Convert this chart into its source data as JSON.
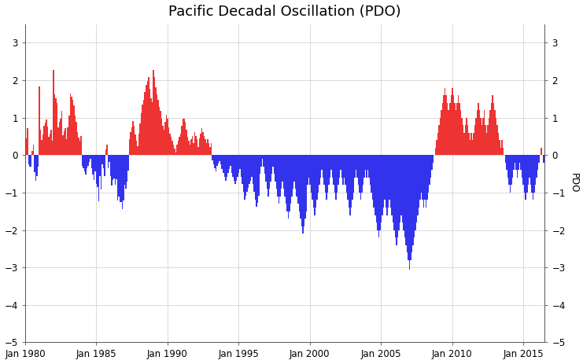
{
  "title": "Pacific Decadal Oscillation (PDO)",
  "ylabel_right": "PDO",
  "ylim": [
    -5.0,
    3.5
  ],
  "yticks": [
    -5.0,
    -4.0,
    -3.0,
    -2.0,
    -1.0,
    0.0,
    1.0,
    2.0,
    3.0
  ],
  "color_positive": "#EE3333",
  "color_negative": "#3333EE",
  "background_color": "#FFFFFF",
  "start_year": 1980,
  "title_fontsize": 13,
  "pdo_values": [
    0.61,
    0.45,
    0.73,
    -0.24,
    -0.31,
    -0.3,
    0.12,
    0.27,
    -0.45,
    -0.69,
    -0.55,
    -0.3,
    1.84,
    0.68,
    0.41,
    0.56,
    0.78,
    0.87,
    0.96,
    0.77,
    0.49,
    0.58,
    0.68,
    0.38,
    2.28,
    1.62,
    1.52,
    1.39,
    0.75,
    0.88,
    0.97,
    1.19,
    0.54,
    0.64,
    0.73,
    0.42,
    0.74,
    1.06,
    1.65,
    1.56,
    1.47,
    1.32,
    1.06,
    0.88,
    0.62,
    0.47,
    0.38,
    0.52,
    -0.28,
    -0.36,
    -0.44,
    -0.52,
    -0.36,
    -0.28,
    -0.18,
    -0.1,
    -0.36,
    -0.52,
    -0.66,
    -0.44,
    -0.76,
    -0.86,
    -1.24,
    -0.56,
    -0.92,
    -0.24,
    -0.36,
    -0.56,
    0.16,
    0.28,
    -0.34,
    -0.18,
    -0.56,
    -0.82,
    -0.67,
    -0.62,
    -0.8,
    -0.65,
    -1.22,
    -1.1,
    -1.26,
    -1.25,
    -1.44,
    -1.22,
    -0.8,
    -0.9,
    -0.7,
    -0.42,
    0.42,
    0.62,
    0.74,
    0.92,
    0.78,
    0.55,
    0.38,
    0.24,
    0.58,
    0.85,
    1.12,
    1.35,
    1.48,
    1.68,
    1.88,
    1.98,
    2.08,
    1.78,
    1.52,
    1.42,
    2.28,
    2.09,
    1.82,
    1.62,
    1.48,
    1.28,
    1.18,
    0.98,
    0.78,
    0.68,
    0.88,
    1.08,
    0.98,
    0.75,
    0.58,
    0.48,
    0.38,
    0.28,
    0.18,
    0.08,
    0.28,
    0.38,
    0.48,
    0.58,
    0.78,
    0.98,
    0.98,
    0.88,
    0.68,
    0.48,
    0.38,
    0.28,
    0.42,
    0.52,
    0.32,
    0.62,
    0.52,
    0.42,
    0.22,
    0.44,
    0.58,
    0.72,
    0.62,
    0.52,
    0.42,
    0.32,
    0.42,
    0.32,
    0.22,
    0.32,
    -0.14,
    -0.24,
    -0.34,
    -0.44,
    -0.28,
    -0.22,
    -0.16,
    -0.24,
    -0.38,
    -0.48,
    -0.58,
    -0.68,
    -0.58,
    -0.48,
    -0.38,
    -0.28,
    -0.48,
    -0.58,
    -0.68,
    -0.78,
    -0.68,
    -0.58,
    -0.48,
    -0.38,
    -0.58,
    -0.78,
    -0.98,
    -1.18,
    -1.08,
    -0.98,
    -0.88,
    -0.78,
    -0.68,
    -0.58,
    -0.78,
    -0.98,
    -1.18,
    -1.38,
    -1.28,
    -1.08,
    -0.5,
    -0.3,
    -0.1,
    -0.3,
    -0.5,
    -0.7,
    -0.9,
    -1.1,
    -0.9,
    -0.7,
    -0.5,
    -0.3,
    -0.5,
    -0.7,
    -0.9,
    -1.1,
    -1.3,
    -1.1,
    -0.9,
    -0.7,
    -0.9,
    -1.1,
    -1.3,
    -1.5,
    -1.7,
    -1.5,
    -1.3,
    -1.1,
    -0.9,
    -0.7,
    -0.9,
    -1.1,
    -1.3,
    -1.5,
    -1.7,
    -1.9,
    -2.1,
    -1.9,
    -1.7,
    -1.5,
    -0.8,
    -0.6,
    -0.8,
    -1.0,
    -1.2,
    -1.4,
    -1.6,
    -1.4,
    -1.2,
    -1.0,
    -0.8,
    -0.6,
    -0.4,
    -0.6,
    -0.8,
    -1.0,
    -1.2,
    -1.0,
    -0.8,
    -0.6,
    -0.4,
    -0.6,
    -0.8,
    -1.0,
    -1.2,
    -1.0,
    -0.8,
    -0.6,
    -0.4,
    -0.6,
    -0.8,
    -0.6,
    -0.8,
    -1.0,
    -1.2,
    -1.4,
    -1.6,
    -1.4,
    -1.2,
    -1.0,
    -0.6,
    -0.4,
    -0.6,
    -0.8,
    -1.0,
    -1.2,
    -1.0,
    -0.8,
    -0.6,
    -0.4,
    -0.6,
    -0.4,
    -0.6,
    -0.8,
    -1.0,
    -1.2,
    -1.4,
    -1.6,
    -1.8,
    -2.0,
    -2.2,
    -2.0,
    -1.8,
    -1.6,
    -1.4,
    -1.2,
    -1.4,
    -1.6,
    -1.4,
    -1.2,
    -1.4,
    -1.6,
    -1.8,
    -2.0,
    -2.2,
    -2.4,
    -2.2,
    -2.0,
    -1.8,
    -1.6,
    -1.8,
    -2.0,
    -2.2,
    -2.4,
    -2.6,
    -2.8,
    -3.05,
    -2.8,
    -2.6,
    -2.4,
    -2.2,
    -2.0,
    -1.8,
    -1.6,
    -1.4,
    -1.2,
    -1.0,
    -1.2,
    -1.4,
    -1.2,
    -1.4,
    -1.2,
    -1.0,
    -0.8,
    -0.6,
    -0.4,
    -0.2,
    0.0,
    0.2,
    0.4,
    0.6,
    0.8,
    1.0,
    1.2,
    1.4,
    1.6,
    1.8,
    1.6,
    1.4,
    1.2,
    1.4,
    1.6,
    1.8,
    1.6,
    1.4,
    1.2,
    1.4,
    1.6,
    1.4,
    1.2,
    1.0,
    0.8,
    0.6,
    0.8,
    1.0,
    0.8,
    0.6,
    0.4,
    0.6,
    0.4,
    0.6,
    0.8,
    1.0,
    1.2,
    1.4,
    1.2,
    1.0,
    0.8,
    1.0,
    1.2,
    0.8,
    0.6,
    0.8,
    1.0,
    1.2,
    1.4,
    1.6,
    1.4,
    1.2,
    1.0,
    0.8,
    0.6,
    0.4,
    0.2,
    0.4,
    0.2,
    0.0,
    -0.2,
    -0.4,
    -0.6,
    -0.8,
    -1.0,
    -0.8,
    -0.6,
    -0.4,
    -0.2,
    -0.4,
    -0.6,
    -0.4,
    -0.2,
    -0.4,
    -0.6,
    -0.8,
    -1.0,
    -1.2,
    -1.0,
    -0.8,
    -0.6,
    -0.8,
    -1.0,
    -1.2,
    -1.0,
    -0.8,
    -0.6,
    -0.4,
    -0.2,
    0.0,
    0.2,
    0.0,
    -0.2,
    -0.4,
    -0.2,
    0.0,
    0.2,
    0.0,
    -0.2,
    -0.4,
    -0.6,
    -0.8,
    -1.0
  ]
}
